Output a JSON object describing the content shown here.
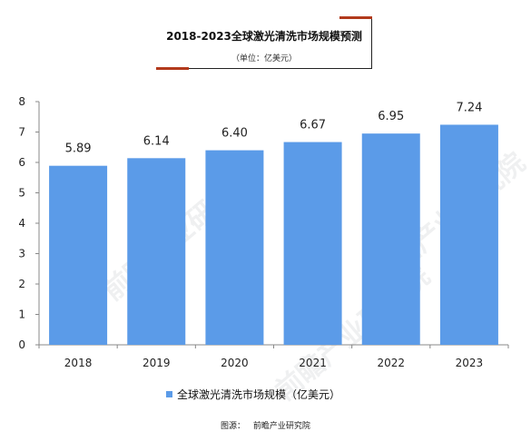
{
  "header": {
    "title": "2018-2023全球激光清洗市场规模预测",
    "subtitle": "（单位：亿美元）"
  },
  "legend": {
    "label": "全球激光清洗市场规模（亿美元）"
  },
  "source": {
    "label": "图源：",
    "name": "前瞻产业研究院"
  },
  "watermark": {
    "text": "前瞻产业研究院"
  },
  "colors": {
    "bar": "#5b9be8",
    "axis": "#888888",
    "accent": "#b23a1c"
  },
  "chart_data": {
    "type": "bar",
    "title": "2018-2023全球激光清洗市场规模预测",
    "subtitle": "（单位：亿美元）",
    "categories": [
      "2018",
      "2019",
      "2020",
      "2021",
      "2022",
      "2023"
    ],
    "series": [
      {
        "name": "全球激光清洗市场规模（亿美元）",
        "values": [
          5.89,
          6.14,
          6.4,
          6.67,
          6.95,
          7.24
        ]
      }
    ],
    "data_labels": [
      "5.89",
      "6.14",
      "6.40",
      "6.67",
      "6.95",
      "7.24"
    ],
    "ylim": [
      0,
      8
    ],
    "yticks": [
      0,
      1,
      2,
      3,
      4,
      5,
      6,
      7,
      8
    ],
    "xlabel": "",
    "ylabel": "",
    "grid": false,
    "legend_position": "bottom"
  }
}
